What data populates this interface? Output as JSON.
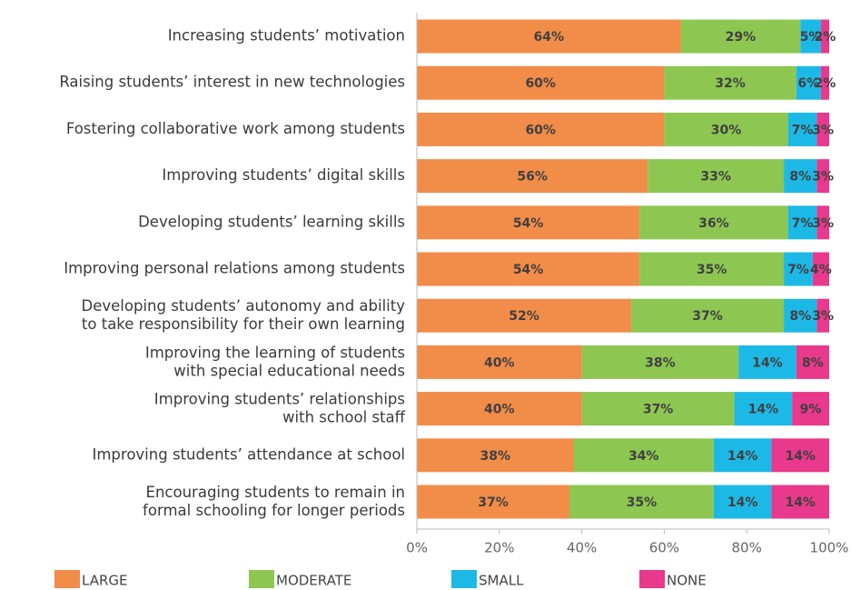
{
  "chart_data": {
    "type": "stacked_barh",
    "categories": [
      "Increasing students’ motivation",
      "Raising students’ interest in new technologies",
      "Fostering collaborative work among students",
      "Improving students’ digital skills",
      "Developing students’ learning skills",
      "Improving personal relations among students",
      "Developing students’ autonomy and ability\nto take responsibility for their own learning",
      "Improving the learning of students\nwith special educational needs",
      "Improving students’ relationships\nwith school staff",
      "Improving students’ attendance at school",
      "Encouraging students to remain in\nformal schooling for longer periods"
    ],
    "series": [
      {
        "name": "LARGE",
        "color": "#f28c49",
        "values": [
          64,
          60,
          60,
          56,
          54,
          54,
          52,
          40,
          40,
          38,
          37
        ],
        "value_labels": [
          "64%",
          "60%",
          "60%",
          "56%",
          "54%",
          "54%",
          "52%",
          "40%",
          "40%",
          "38%",
          "37%"
        ]
      },
      {
        "name": "MODERATE",
        "color": "#8dc752",
        "values": [
          29,
          32,
          30,
          33,
          36,
          35,
          37,
          38,
          37,
          34,
          35
        ],
        "value_labels": [
          "29%",
          "32%",
          "30%",
          "33%",
          "36%",
          "35%",
          "37%",
          "38%",
          "37%",
          "34%",
          "35%"
        ]
      },
      {
        "name": "SMALL",
        "color": "#1db9e6",
        "values": [
          5,
          6,
          7,
          8,
          7,
          7,
          8,
          14,
          14,
          14,
          14
        ],
        "value_labels": [
          "5%",
          "6%",
          "7%",
          "8%",
          "7%",
          "7%",
          "8%",
          "14%",
          "14%",
          "14%",
          "14%"
        ]
      },
      {
        "name": "NONE",
        "color": "#e8398d",
        "values": [
          2,
          2,
          3,
          3,
          3,
          4,
          3,
          8,
          9,
          14,
          14
        ],
        "value_labels": [
          "2%",
          "2%",
          "3%",
          "3%",
          "3%",
          "4%",
          "3%",
          "8%",
          "9%",
          "14%",
          "14%"
        ]
      }
    ],
    "xlim": [
      0,
      100
    ],
    "xticks": [
      {
        "value": 0,
        "label": "0%"
      },
      {
        "value": 20,
        "label": "20%"
      },
      {
        "value": 40,
        "label": "40%"
      },
      {
        "value": 60,
        "label": "60%"
      },
      {
        "value": 80,
        "label": "80%"
      },
      {
        "value": 100,
        "label": "100%"
      }
    ],
    "legend": "bottom"
  }
}
